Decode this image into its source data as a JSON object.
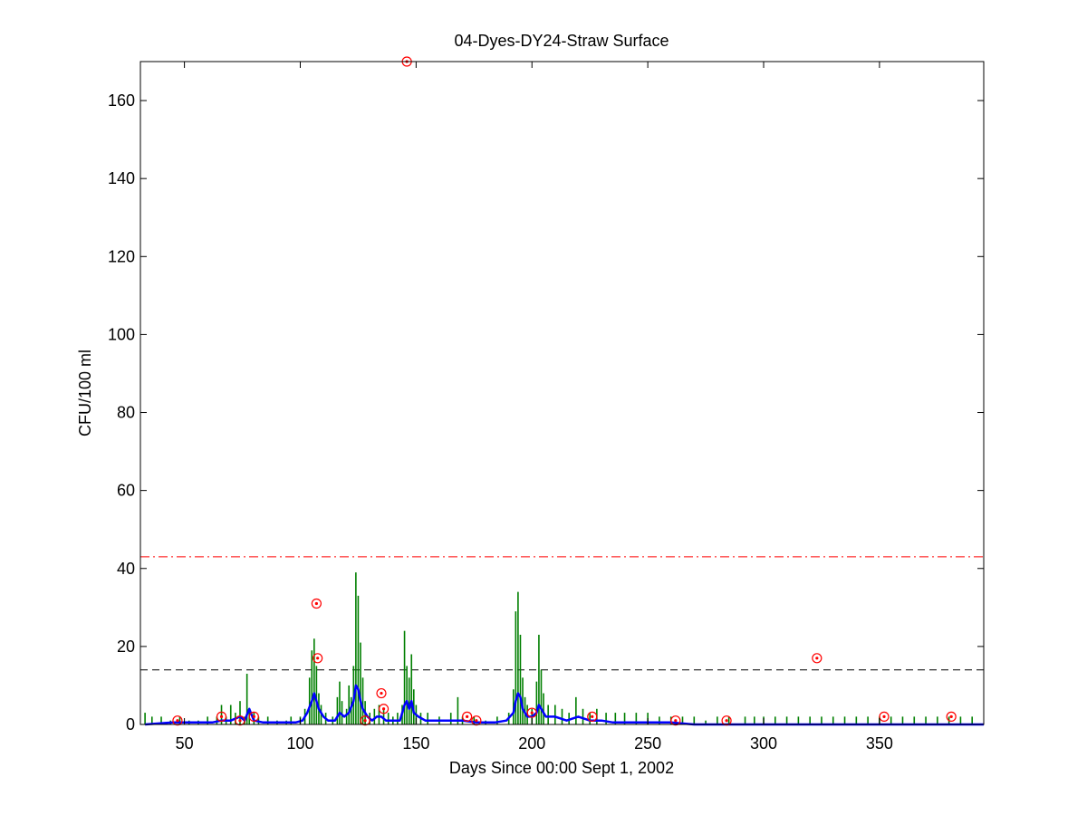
{
  "chart_data": {
    "type": "line",
    "title": "04-Dyes-DY24-Straw Surface",
    "xlabel": "Days Since 00:00 Sept 1, 2002",
    "ylabel": "CFU/100 ml",
    "xlim": [
      31,
      395
    ],
    "ylim": [
      0,
      170
    ],
    "xticks": [
      50,
      100,
      150,
      200,
      250,
      300,
      350
    ],
    "yticks": [
      0,
      20,
      40,
      60,
      80,
      100,
      120,
      140,
      160
    ],
    "grid": false,
    "colors": {
      "green_series": "#007f00",
      "blue_series": "#0000ff",
      "markers": "#ff0000",
      "red_threshold": "#ff0000",
      "black_threshold": "#000000"
    },
    "series": [
      {
        "style": "green-stems",
        "points": [
          [
            33,
            3
          ],
          [
            36,
            2
          ],
          [
            40,
            2
          ],
          [
            44,
            1
          ],
          [
            48,
            2
          ],
          [
            52,
            1
          ],
          [
            56,
            1
          ],
          [
            60,
            2
          ],
          [
            64,
            2
          ],
          [
            66,
            5
          ],
          [
            68,
            2
          ],
          [
            70,
            5
          ],
          [
            72,
            3
          ],
          [
            74,
            6
          ],
          [
            76,
            2
          ],
          [
            77,
            13
          ],
          [
            78,
            4
          ],
          [
            80,
            3
          ],
          [
            82,
            2
          ],
          [
            86,
            2
          ],
          [
            90,
            1
          ],
          [
            94,
            1
          ],
          [
            96,
            2
          ],
          [
            100,
            2
          ],
          [
            102,
            4
          ],
          [
            104,
            12
          ],
          [
            105,
            19
          ],
          [
            106,
            22
          ],
          [
            107,
            15
          ],
          [
            108,
            8
          ],
          [
            109,
            5
          ],
          [
            111,
            3
          ],
          [
            114,
            2
          ],
          [
            116,
            7
          ],
          [
            117,
            11
          ],
          [
            118,
            6
          ],
          [
            120,
            4
          ],
          [
            121,
            10
          ],
          [
            122,
            7
          ],
          [
            123,
            15
          ],
          [
            124,
            39
          ],
          [
            125,
            33
          ],
          [
            126,
            21
          ],
          [
            127,
            12
          ],
          [
            128,
            6
          ],
          [
            130,
            3
          ],
          [
            132,
            4
          ],
          [
            134,
            5
          ],
          [
            136,
            4
          ],
          [
            138,
            3
          ],
          [
            140,
            2
          ],
          [
            142,
            3
          ],
          [
            144,
            5
          ],
          [
            145,
            24
          ],
          [
            146,
            15
          ],
          [
            147,
            12
          ],
          [
            148,
            18
          ],
          [
            149,
            9
          ],
          [
            150,
            5
          ],
          [
            152,
            3
          ],
          [
            155,
            3
          ],
          [
            160,
            2
          ],
          [
            165,
            3
          ],
          [
            168,
            7
          ],
          [
            170,
            2
          ],
          [
            175,
            2
          ],
          [
            180,
            1
          ],
          [
            185,
            2
          ],
          [
            190,
            3
          ],
          [
            192,
            9
          ],
          [
            193,
            29
          ],
          [
            194,
            34
          ],
          [
            195,
            23
          ],
          [
            196,
            12
          ],
          [
            197,
            7
          ],
          [
            198,
            5
          ],
          [
            200,
            4
          ],
          [
            202,
            11
          ],
          [
            203,
            23
          ],
          [
            204,
            14
          ],
          [
            205,
            8
          ],
          [
            207,
            5
          ],
          [
            210,
            5
          ],
          [
            213,
            4
          ],
          [
            216,
            3
          ],
          [
            219,
            7
          ],
          [
            222,
            4
          ],
          [
            225,
            3
          ],
          [
            228,
            4
          ],
          [
            232,
            3
          ],
          [
            236,
            3
          ],
          [
            240,
            3
          ],
          [
            245,
            3
          ],
          [
            250,
            3
          ],
          [
            255,
            2
          ],
          [
            260,
            2
          ],
          [
            265,
            2
          ],
          [
            270,
            2
          ],
          [
            275,
            1
          ],
          [
            280,
            2
          ],
          [
            285,
            2
          ],
          [
            292,
            2
          ],
          [
            296,
            2
          ],
          [
            300,
            2
          ],
          [
            305,
            2
          ],
          [
            310,
            2
          ],
          [
            315,
            2
          ],
          [
            320,
            2
          ],
          [
            325,
            2
          ],
          [
            330,
            2
          ],
          [
            335,
            2
          ],
          [
            340,
            2
          ],
          [
            345,
            2
          ],
          [
            350,
            2
          ],
          [
            355,
            2
          ],
          [
            360,
            2
          ],
          [
            365,
            2
          ],
          [
            370,
            2
          ],
          [
            375,
            2
          ],
          [
            380,
            2
          ],
          [
            385,
            2
          ],
          [
            390,
            2
          ]
        ]
      },
      {
        "style": "blue-line",
        "points": [
          [
            33,
            0
          ],
          [
            45,
            0.5
          ],
          [
            55,
            0.5
          ],
          [
            62,
            0.5
          ],
          [
            66,
            1
          ],
          [
            70,
            1
          ],
          [
            74,
            2
          ],
          [
            76,
            1
          ],
          [
            78,
            4
          ],
          [
            80,
            1
          ],
          [
            84,
            0.5
          ],
          [
            92,
            0.5
          ],
          [
            98,
            0.5
          ],
          [
            101,
            1
          ],
          [
            103,
            3
          ],
          [
            105,
            6
          ],
          [
            106,
            8
          ],
          [
            107,
            6
          ],
          [
            108,
            4
          ],
          [
            110,
            2
          ],
          [
            112,
            1
          ],
          [
            115,
            1
          ],
          [
            117,
            3
          ],
          [
            119,
            2
          ],
          [
            121,
            3
          ],
          [
            123,
            6
          ],
          [
            124,
            10
          ],
          [
            125,
            9
          ],
          [
            126,
            6
          ],
          [
            127,
            4
          ],
          [
            129,
            2
          ],
          [
            131,
            1
          ],
          [
            133,
            2
          ],
          [
            135,
            2
          ],
          [
            137,
            1
          ],
          [
            140,
            1
          ],
          [
            143,
            1
          ],
          [
            145,
            5
          ],
          [
            146,
            6
          ],
          [
            147,
            4
          ],
          [
            148,
            6
          ],
          [
            149,
            3
          ],
          [
            151,
            2
          ],
          [
            154,
            1
          ],
          [
            160,
            1
          ],
          [
            167,
            1
          ],
          [
            170,
            1
          ],
          [
            176,
            0.5
          ],
          [
            184,
            0.5
          ],
          [
            189,
            1
          ],
          [
            192,
            3
          ],
          [
            193,
            6
          ],
          [
            194,
            8
          ],
          [
            195,
            7
          ],
          [
            196,
            4
          ],
          [
            198,
            2
          ],
          [
            200,
            2
          ],
          [
            202,
            3
          ],
          [
            203,
            5
          ],
          [
            204,
            4
          ],
          [
            206,
            2
          ],
          [
            210,
            2
          ],
          [
            215,
            1
          ],
          [
            220,
            2
          ],
          [
            225,
            1
          ],
          [
            230,
            1
          ],
          [
            235,
            0.5
          ],
          [
            245,
            0.5
          ],
          [
            255,
            0.5
          ],
          [
            260,
            0.5
          ],
          [
            270,
            0
          ],
          [
            300,
            0
          ],
          [
            340,
            0
          ],
          [
            395,
            0
          ]
        ]
      },
      {
        "style": "red-circle-markers",
        "points": [
          [
            47,
            1
          ],
          [
            66,
            2
          ],
          [
            74,
            1
          ],
          [
            80,
            2
          ],
          [
            107,
            31
          ],
          [
            107.5,
            17
          ],
          [
            128,
            1
          ],
          [
            135,
            8
          ],
          [
            136,
            4
          ],
          [
            146,
            170
          ],
          [
            172,
            2
          ],
          [
            176,
            1
          ],
          [
            200,
            3
          ],
          [
            226,
            2
          ],
          [
            262,
            1
          ],
          [
            284,
            1
          ],
          [
            323,
            17
          ],
          [
            352,
            2
          ],
          [
            381,
            2
          ]
        ]
      }
    ],
    "reference_lines": [
      {
        "style": "red-dash-dot",
        "y": 43
      },
      {
        "style": "black-dashed",
        "y": 14
      }
    ]
  }
}
